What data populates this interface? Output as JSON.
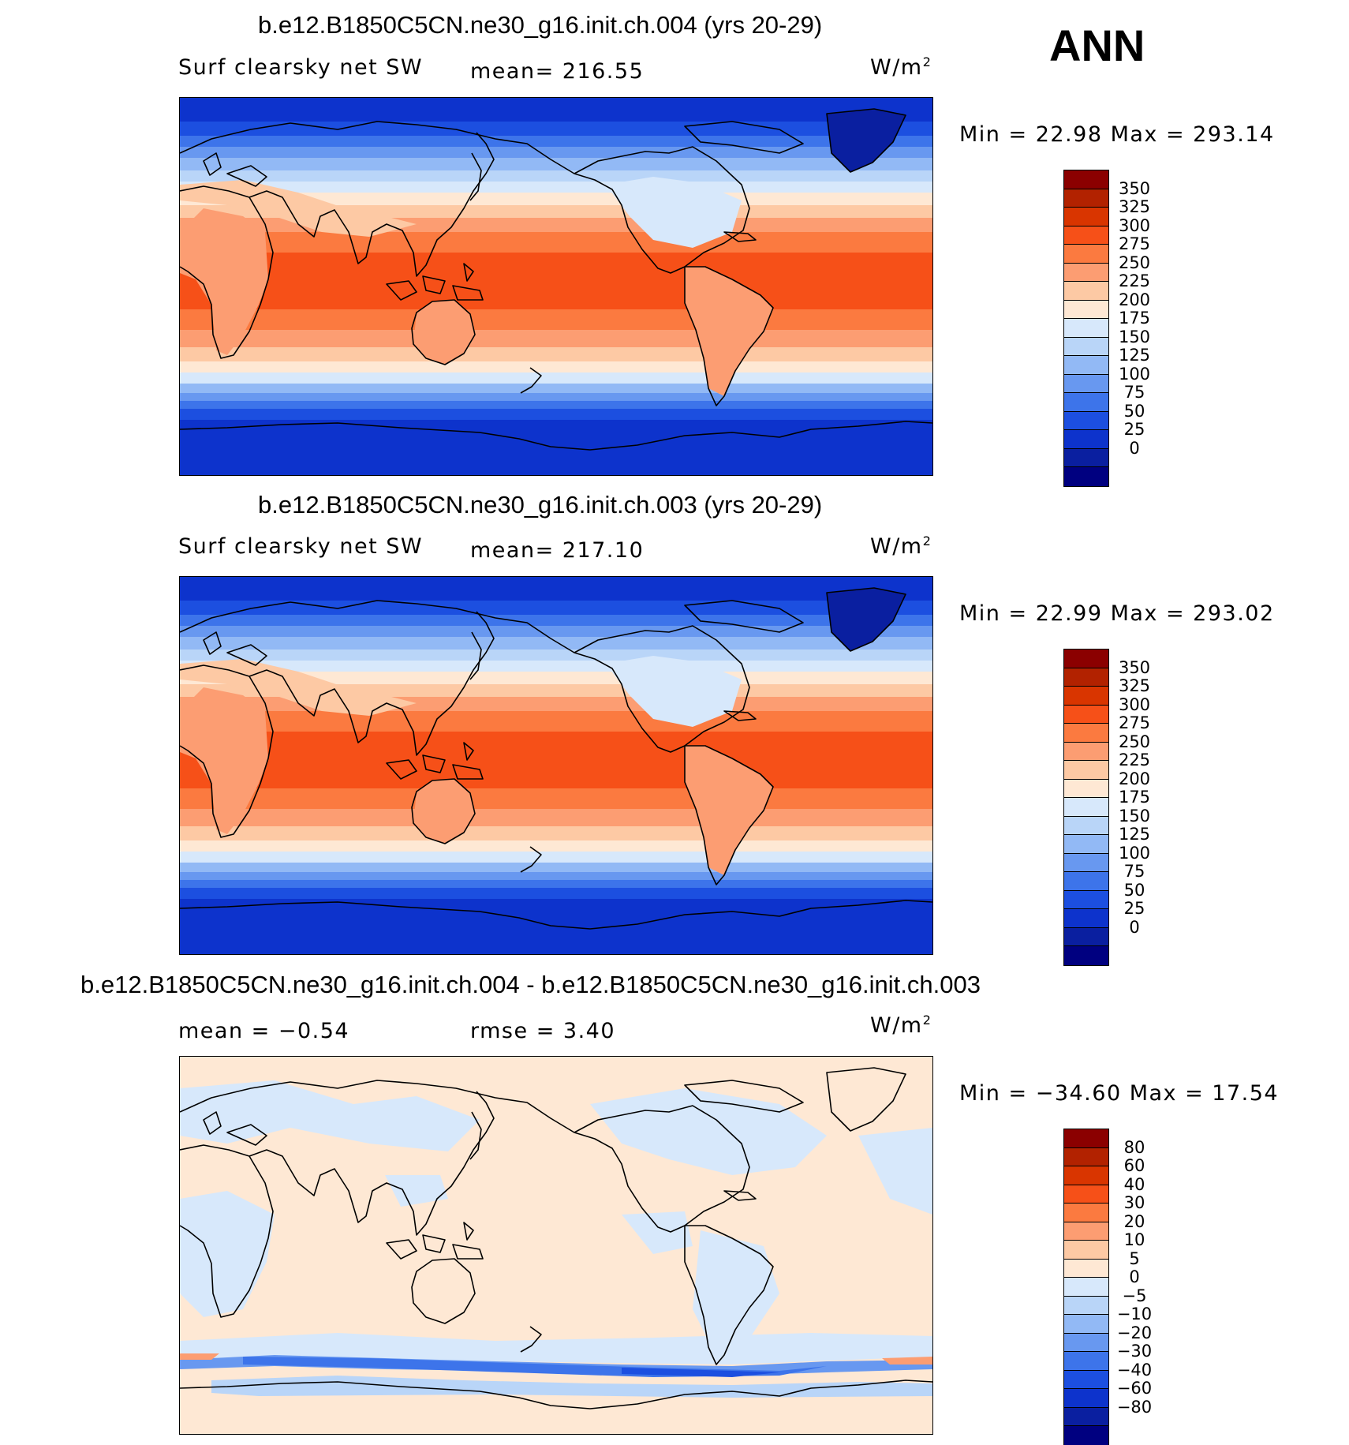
{
  "season": "ANN",
  "panels": [
    {
      "title": "b.e12.B1850C5CN.ne30_g16.init.ch.004 (yrs 20-29)",
      "variable": "Surf clearsky net SW",
      "stat1": "mean=  216.55",
      "units": "W/m",
      "units_exp": "2",
      "minmax": "Min =   22.98  Max  =  293.14",
      "map_kind": "absolute",
      "colorbar": {
        "colors": [
          "#8b0000",
          "#b22200",
          "#d93500",
          "#f65018",
          "#fb7a40",
          "#fc9d72",
          "#fdc9a4",
          "#fee8d4",
          "#d7e8fb",
          "#b9d5f8",
          "#92b9f5",
          "#6898f0",
          "#3d74ea",
          "#1c4fe0",
          "#0d33cc",
          "#0a1fa0",
          "#000080"
        ],
        "labels": [
          "350",
          "325",
          "300",
          "275",
          "250",
          "225",
          "200",
          "175",
          "150",
          "125",
          "100",
          "75",
          "50",
          "25",
          "0"
        ]
      }
    },
    {
      "title": "b.e12.B1850C5CN.ne30_g16.init.ch.003 (yrs 20-29)",
      "variable": "Surf clearsky net SW",
      "stat1": "mean=  217.10",
      "units": "W/m",
      "units_exp": "2",
      "minmax": "Min =   22.99  Max  =  293.02",
      "map_kind": "absolute",
      "colorbar": {
        "colors": [
          "#8b0000",
          "#b22200",
          "#d93500",
          "#f65018",
          "#fb7a40",
          "#fc9d72",
          "#fdc9a4",
          "#fee8d4",
          "#d7e8fb",
          "#b9d5f8",
          "#92b9f5",
          "#6898f0",
          "#3d74ea",
          "#1c4fe0",
          "#0d33cc",
          "#0a1fa0",
          "#000080"
        ],
        "labels": [
          "350",
          "325",
          "300",
          "275",
          "250",
          "225",
          "200",
          "175",
          "150",
          "125",
          "100",
          "75",
          "50",
          "25",
          "0"
        ]
      }
    },
    {
      "title": "b.e12.B1850C5CN.ne30_g16.init.ch.004 - b.e12.B1850C5CN.ne30_g16.init.ch.003",
      "variable": "mean =    −0.54",
      "stat1": "rmse =      3.40",
      "units": "W/m",
      "units_exp": "2",
      "minmax": "Min = −34.60  Max  =    17.54",
      "map_kind": "difference",
      "colorbar": {
        "colors": [
          "#8b0000",
          "#b22200",
          "#d93500",
          "#f65018",
          "#fb7a40",
          "#fc9d72",
          "#fdc9a4",
          "#fee8d4",
          "#d7e8fb",
          "#b9d5f8",
          "#92b9f5",
          "#6898f0",
          "#3d74ea",
          "#1c4fe0",
          "#0d33cc",
          "#0a1fa0",
          "#000080"
        ],
        "labels": [
          "80",
          "60",
          "40",
          "30",
          "20",
          "10",
          "5",
          "0",
          "−5",
          "−10",
          "−20",
          "−30",
          "−40",
          "−60",
          "−80"
        ]
      }
    }
  ]
}
